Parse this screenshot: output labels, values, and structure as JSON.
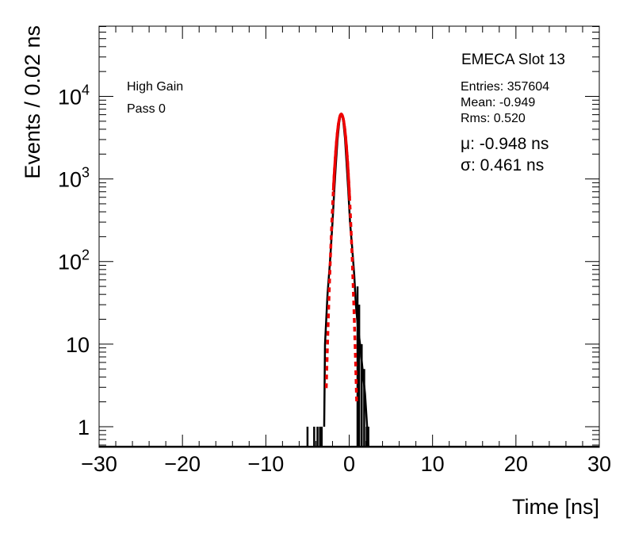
{
  "chart_data": {
    "type": "histogram",
    "title": "EMECA Slot 13",
    "xlabel": "Time [ns]",
    "ylabel": "Events / 0.02 ns",
    "xlim": [
      -30,
      30
    ],
    "ylim_log10": [
      -0.25,
      4.85
    ],
    "y_scale": "log",
    "x_ticks": [
      {
        "v": -30,
        "label": "−30"
      },
      {
        "v": -20,
        "label": "−20"
      },
      {
        "v": -10,
        "label": "−10"
      },
      {
        "v": 0,
        "label": "0"
      },
      {
        "v": 10,
        "label": "10"
      },
      {
        "v": 20,
        "label": "20"
      },
      {
        "v": 30,
        "label": "30"
      }
    ],
    "y_ticks": [
      {
        "v": 1,
        "base": "1",
        "exp": ""
      },
      {
        "v": 10,
        "base": "10",
        "exp": ""
      },
      {
        "v": 100,
        "base": "10",
        "exp": "2"
      },
      {
        "v": 1000,
        "base": "10",
        "exp": "3"
      },
      {
        "v": 10000,
        "base": "10",
        "exp": "4"
      }
    ],
    "legend_left": {
      "line1": "High Gain",
      "line2": "Pass 0"
    },
    "stats": {
      "entries": "Entries: 357604",
      "mean": "Mean: -0.949",
      "rms": "Rms: 0.520"
    },
    "fit_text": {
      "mu": "μ: -0.948 ns",
      "sigma": "σ: 0.461 ns"
    },
    "histogram": {
      "color": "#000000",
      "outline": [
        [
          -3.0,
          1
        ],
        [
          -2.9,
          10
        ],
        [
          -2.6,
          40
        ],
        [
          -2.3,
          100
        ],
        [
          -2.0,
          300
        ],
        [
          -1.8,
          700
        ],
        [
          -1.6,
          1500
        ],
        [
          -1.4,
          3000
        ],
        [
          -1.2,
          4800
        ],
        [
          -1.05,
          5900
        ],
        [
          -0.95,
          6100
        ],
        [
          -0.85,
          5900
        ],
        [
          -0.7,
          4900
        ],
        [
          -0.5,
          3100
        ],
        [
          -0.3,
          1500
        ],
        [
          -0.1,
          700
        ],
        [
          0.1,
          300
        ],
        [
          0.35,
          150
        ],
        [
          0.6,
          70
        ],
        [
          0.8,
          30
        ],
        [
          1.0,
          18
        ],
        [
          1.3,
          10
        ],
        [
          1.6,
          5
        ],
        [
          1.9,
          2.5
        ],
        [
          2.1,
          1.2
        ],
        [
          2.3,
          0.55
        ]
      ],
      "spikes": [
        {
          "x": -5.0,
          "h": 1
        },
        {
          "x": -4.2,
          "h": 1
        },
        {
          "x": -3.8,
          "h": 1
        },
        {
          "x": -3.5,
          "h": 1
        },
        {
          "x": -3.3,
          "h": 1
        },
        {
          "x": 1.0,
          "h": 50
        },
        {
          "x": 1.2,
          "h": 30
        },
        {
          "x": 1.5,
          "h": 10
        },
        {
          "x": 1.8,
          "h": 5
        },
        {
          "x": 2.1,
          "h": 1
        },
        {
          "x": 2.3,
          "h": 1
        }
      ]
    },
    "fit": {
      "type": "gaussian",
      "color": "#ee0000",
      "mean": -0.948,
      "sigma": 0.461,
      "amplitude": 6100,
      "solid_range": [
        -1.9,
        0.05
      ],
      "dashed_range": [
        -2.75,
        0.9
      ]
    }
  }
}
